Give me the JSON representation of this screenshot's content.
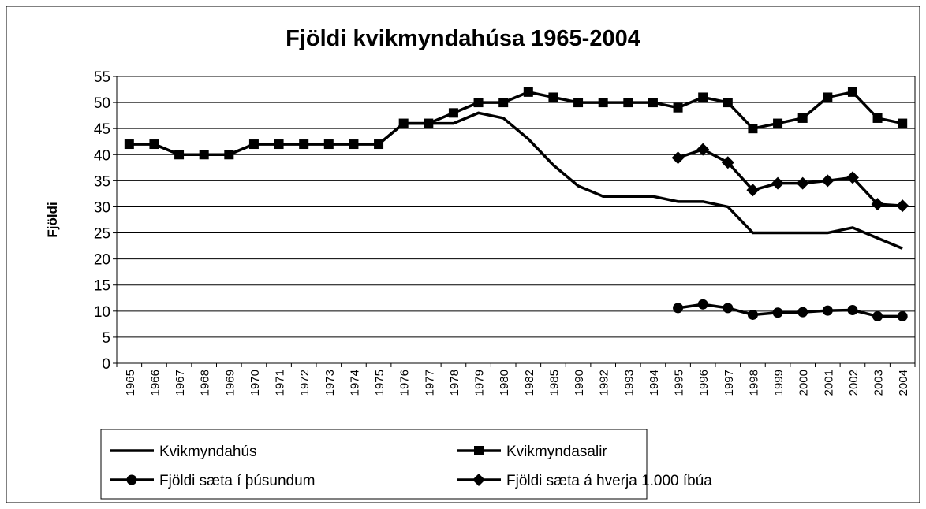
{
  "chart_data": {
    "type": "line",
    "title": "Fjöldi kvikmyndahúsa 1965-2004",
    "y_label": "Fjöldi",
    "categories": [
      "1965",
      "1966",
      "1967",
      "1968",
      "1969",
      "1970",
      "1971",
      "1972",
      "1973",
      "1974",
      "1975",
      "1976",
      "1977",
      "1978",
      "1979",
      "1980",
      "1982",
      "1985",
      "1990",
      "1992",
      "1993",
      "1994",
      "1995",
      "1996",
      "1997",
      "1998",
      "1999",
      "2000",
      "2001",
      "2002",
      "2003",
      "2004"
    ],
    "series": [
      {
        "name": "Kvikmyndahús",
        "color": "#000000",
        "marker": "none",
        "values": [
          42,
          42,
          40,
          40,
          40,
          42,
          42,
          42,
          42,
          42,
          42,
          46,
          46,
          46,
          48,
          47,
          43,
          38,
          34,
          32,
          32,
          32,
          31,
          31,
          30,
          25,
          25,
          25,
          25,
          26,
          24,
          22
        ]
      },
      {
        "name": "Kvikmyndasalir",
        "color": "#000000",
        "marker": "square",
        "values": [
          42,
          42,
          40,
          40,
          40,
          42,
          42,
          42,
          42,
          42,
          42,
          46,
          46,
          48,
          50,
          50,
          52,
          51,
          50,
          50,
          50,
          50,
          49,
          51,
          50,
          45,
          46,
          47,
          51,
          52,
          47,
          46
        ]
      },
      {
        "name": "Fjöldi sæta í þúsundum",
        "color": "#000000",
        "marker": "circle",
        "values": [
          null,
          null,
          null,
          null,
          null,
          null,
          null,
          null,
          null,
          null,
          null,
          null,
          null,
          null,
          null,
          null,
          null,
          null,
          null,
          null,
          null,
          null,
          10.6,
          11.3,
          10.6,
          9.3,
          9.7,
          9.8,
          10.1,
          10.2,
          9.0,
          9.0
        ]
      },
      {
        "name": "Fjöldi sæta á hverja 1.000 íbúa",
        "color": "#000000",
        "marker": "diamond",
        "values": [
          null,
          null,
          null,
          null,
          null,
          null,
          null,
          null,
          null,
          null,
          null,
          null,
          null,
          null,
          null,
          null,
          null,
          null,
          null,
          null,
          null,
          null,
          39.4,
          41,
          38.5,
          33.2,
          34.5,
          34.5,
          35,
          35.6,
          30.5,
          30.2
        ]
      }
    ],
    "ylim": [
      0,
      55
    ],
    "yticks": [
      0,
      5,
      10,
      15,
      20,
      25,
      30,
      35,
      40,
      45,
      50,
      55
    ],
    "grid": true,
    "legend": "bottom"
  }
}
